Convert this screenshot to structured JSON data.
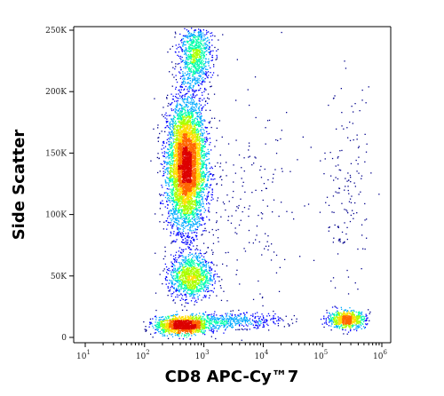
{
  "chart_data": {
    "type": "scatter",
    "title": "",
    "xlabel": "CD8 APC-Cy™7",
    "ylabel": "Side Scatter",
    "x_scale": "log",
    "xlim": [
      10,
      1000000
    ],
    "ylim": [
      0,
      262144
    ],
    "x_ticks": [
      {
        "value": 10,
        "base": "10",
        "exp": "1"
      },
      {
        "value": 100,
        "base": "10",
        "exp": "2"
      },
      {
        "value": 1000,
        "base": "10",
        "exp": "3"
      },
      {
        "value": 10000,
        "base": "10",
        "exp": "4"
      },
      {
        "value": 100000,
        "base": "10",
        "exp": "5"
      },
      {
        "value": 1000000,
        "base": "10",
        "exp": "6"
      }
    ],
    "y_ticks": [
      {
        "value": 0,
        "label": "0"
      },
      {
        "value": 50000,
        "label": "50K"
      },
      {
        "value": 100000,
        "label": "100K"
      },
      {
        "value": 150000,
        "label": "150K"
      },
      {
        "value": 200000,
        "label": "200K"
      },
      {
        "value": 250000,
        "label": "250K"
      }
    ],
    "populations": [
      {
        "x": 500,
        "y": 140000,
        "count": 5200
      },
      {
        "x": 700,
        "y": 230000,
        "count": 900
      },
      {
        "x": 600,
        "y": 50000,
        "count": 1100
      },
      {
        "x": 420,
        "y": 10000,
        "count": 1400
      },
      {
        "x": 2500,
        "y": 14000,
        "count": 500
      },
      {
        "x": 250000,
        "y": 15000,
        "count": 700
      },
      {
        "x": 250000,
        "y": 120000,
        "count": 150
      },
      {
        "x": 5000,
        "y": 100000,
        "count": 200
      }
    ],
    "color_scale": [
      "#00008b",
      "#0000ff",
      "#00aaff",
      "#00ffaa",
      "#aaff00",
      "#ffdd00",
      "#ff6600",
      "#dd0000"
    ],
    "grid": false,
    "legend": "none"
  }
}
